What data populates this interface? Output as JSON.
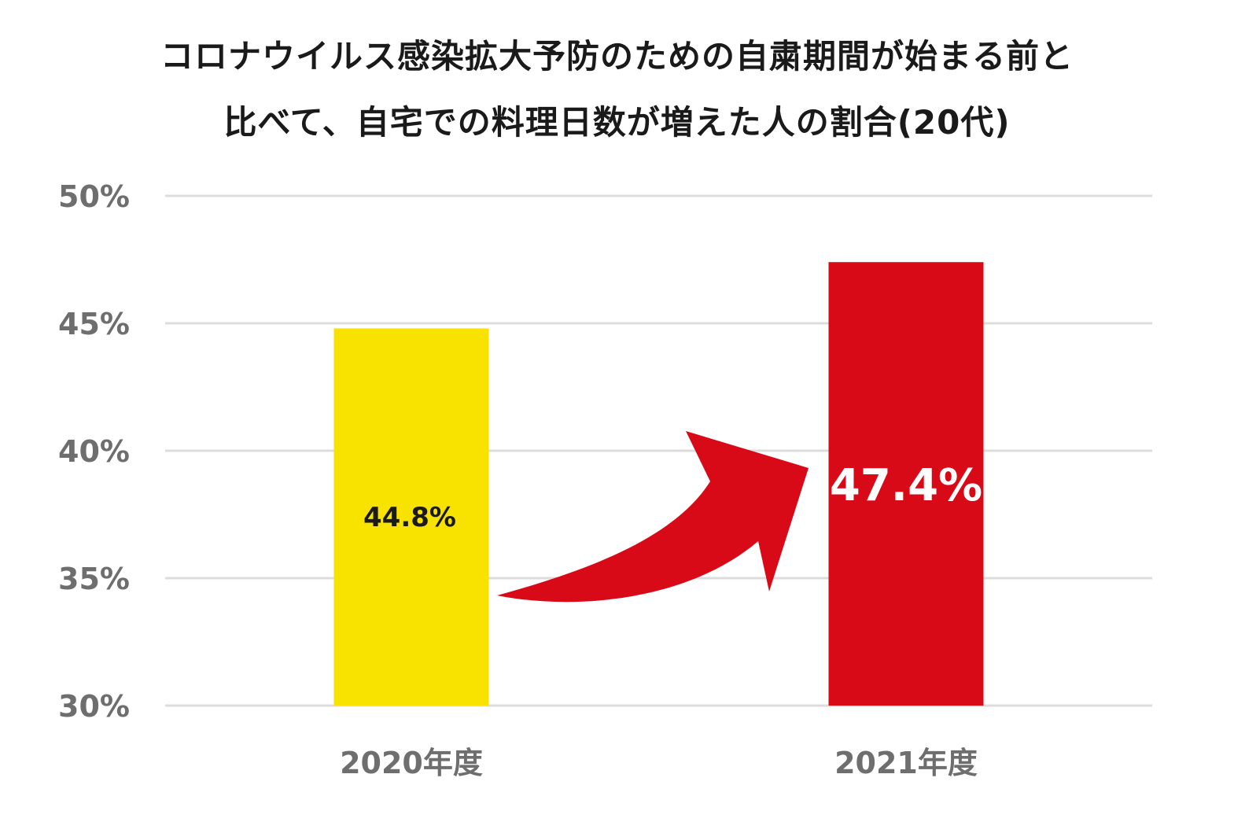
{
  "title_lines": [
    "コロナウイルス感染拡大予防のための自粛期間が始まる前と",
    "比べて、自宅での料理日数が増えた人の割合(20代)"
  ],
  "colors": {
    "bar_2020": "#f7e200",
    "bar_2021": "#d90a17",
    "arrow": "#d90a17",
    "grid": "#dcdcdc",
    "label_2020": "#1a1a1a",
    "label_2021": "#ffffff"
  },
  "chart_data": {
    "type": "bar",
    "title": "コロナウイルス感染拡大予防のための自粛期間が始まる前と比べて、自宅での料理日数が増えた人の割合(20代)",
    "categories": [
      "2020年度",
      "2021年度"
    ],
    "values": [
      44.8,
      47.4
    ],
    "data_labels": [
      "44.8%",
      "47.4%"
    ],
    "ylim": [
      30,
      50
    ],
    "yticks": [
      30,
      35,
      40,
      45,
      50
    ],
    "ytick_labels": [
      "30%",
      "35%",
      "40%",
      "45%",
      "50%"
    ],
    "grid": true,
    "legend": "none",
    "annotation": "red curved arrow from 2020 bar to 2021 bar"
  }
}
